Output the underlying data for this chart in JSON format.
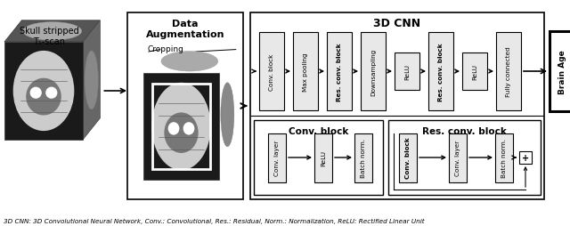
{
  "background_color": "#ffffff",
  "caption": "3D CNN: 3D Convolutional Neural Network, Conv.: Convolutional, Res.: Residual, Norm.: Normalization, ReLU: Rectified Linear Unit",
  "skull_label": "Skull stripped\nT₁-scan",
  "data_aug_label": "Data\nAugmentation",
  "cropping_label": "Cropping",
  "cnn_title": "3D CNN",
  "brain_age_label": "Brain Age",
  "conv_block_title": "Conv. block",
  "conv_block_items": [
    "Conv. layer",
    "ReLU",
    "Batch norm."
  ],
  "res_block_title": "Res. conv. block",
  "res_block_items": [
    "Conv. block",
    "Conv. layer",
    "Batch norm."
  ],
  "cnn_top_blocks": [
    {
      "label": "Conv. block",
      "bold": false,
      "tall": true
    },
    {
      "label": "Max pooling",
      "bold": false,
      "tall": true
    },
    {
      "label": "Res. conv. block",
      "bold": true,
      "tall": true
    },
    {
      "label": "Downsampling",
      "bold": false,
      "tall": true
    },
    {
      "label": "ReLU",
      "bold": false,
      "tall": false
    },
    {
      "label": "Res. conv. block",
      "bold": true,
      "tall": true
    },
    {
      "label": "ReLU",
      "bold": false,
      "tall": false
    },
    {
      "label": "Fully connected",
      "bold": false,
      "tall": true
    }
  ],
  "arrow_color": "#000000"
}
